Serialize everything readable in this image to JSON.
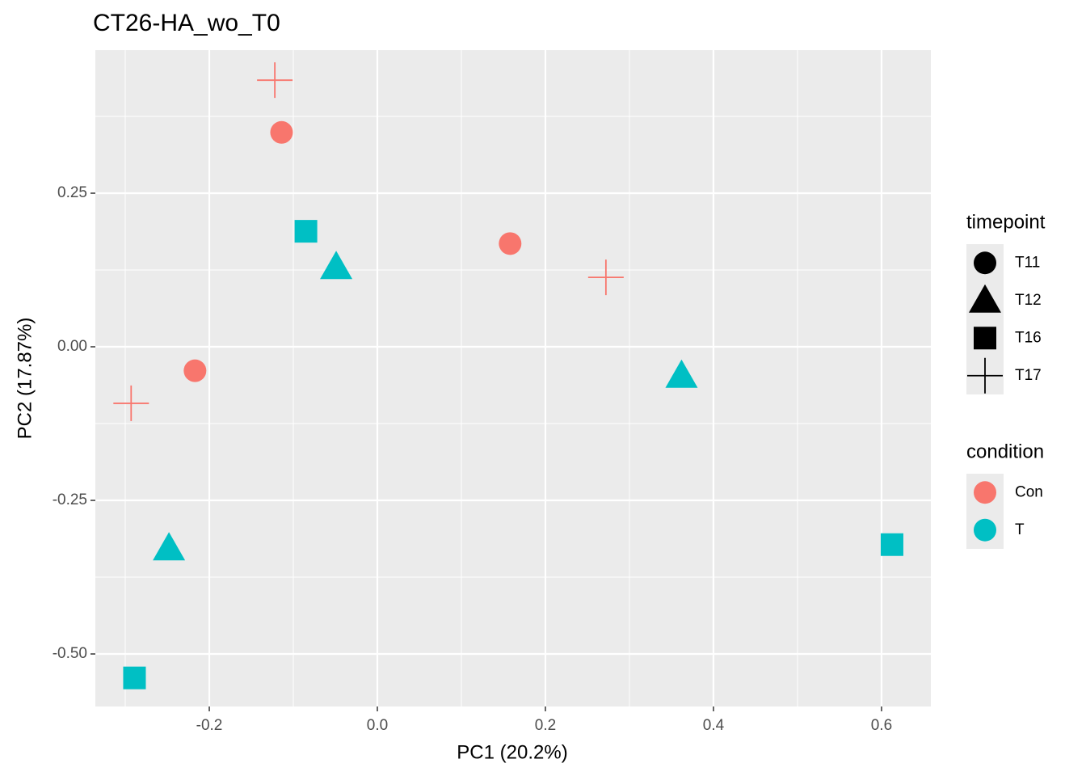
{
  "chart_data": {
    "type": "scatter",
    "title": "CT26-HA_wo_T0",
    "x_label": "PC1 (20.2%)",
    "y_label": "PC2 (17.87%)",
    "x": [
      -0.122,
      -0.114,
      -0.085,
      -0.049,
      0.158,
      0.272,
      0.362,
      -0.217,
      -0.293,
      -0.248,
      0.6125,
      -0.289
    ],
    "y": [
      0.434,
      0.349,
      0.188,
      0.13,
      0.168,
      0.113,
      -0.047,
      -0.039,
      -0.092,
      -0.328,
      -0.322,
      -0.539
    ],
    "timepoint": [
      "T17",
      "T11",
      "T16",
      "T12",
      "T11",
      "T17",
      "T12",
      "T11",
      "T17",
      "T12",
      "T16",
      "T16"
    ],
    "condition": [
      "Con",
      "Con",
      "T",
      "T",
      "Con",
      "Con",
      "T",
      "Con",
      "Con",
      "T",
      "T",
      "T"
    ],
    "xlim": [
      -0.3356,
      0.6587
    ],
    "ylim": [
      -0.5855,
      0.4829
    ],
    "xticks": [
      -0.2,
      {
        "value": 0.0,
        "label": "0.0"
      },
      0.2,
      0.4,
      0.6
    ],
    "yticks": [
      0.25,
      {
        "value": 0.0,
        "label": "0.00"
      },
      -0.25,
      {
        "value": -0.5,
        "label": "-0.50"
      }
    ],
    "x_minor_ticks": [
      -0.3,
      -0.1,
      0.1,
      0.3,
      0.5
    ],
    "y_minor_ticks": [
      0.375,
      0.125,
      -0.125,
      -0.375
    ],
    "grid": true,
    "legends": [
      {
        "title": "timepoint",
        "items": [
          {
            "label": "T11",
            "shape": "circle"
          },
          {
            "label": "T12",
            "shape": "triangle"
          },
          {
            "label": "T16",
            "shape": "square"
          },
          {
            "label": "T17",
            "shape": "cross"
          }
        ]
      },
      {
        "title": "condition",
        "items": [
          {
            "label": "Con",
            "color": "#F8766D"
          },
          {
            "label": "T",
            "color": "#00BFC4"
          }
        ]
      }
    ]
  }
}
